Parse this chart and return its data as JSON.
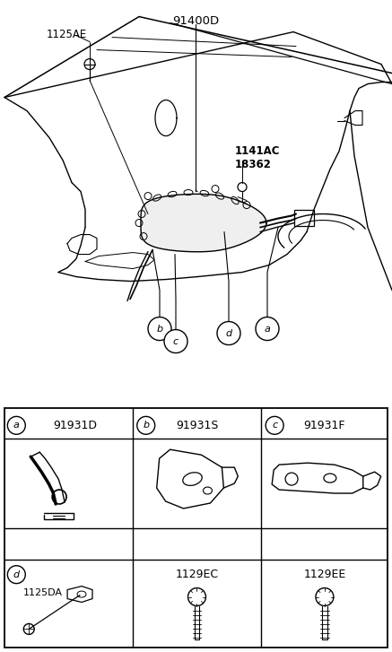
{
  "bg_color": "#ffffff",
  "line_color": "#000000",
  "parts": {
    "main_label": "91400D",
    "bolt_label": "1125AE",
    "bracket_label": "1141AC\n18362",
    "a_code": "91931D",
    "b_code": "91931S",
    "c_code": "91931F",
    "d_code": "1125DA",
    "e_code": "1129EC",
    "f_code": "1129EE"
  },
  "fig_width": 4.37,
  "fig_height": 7.27,
  "dpi": 100
}
